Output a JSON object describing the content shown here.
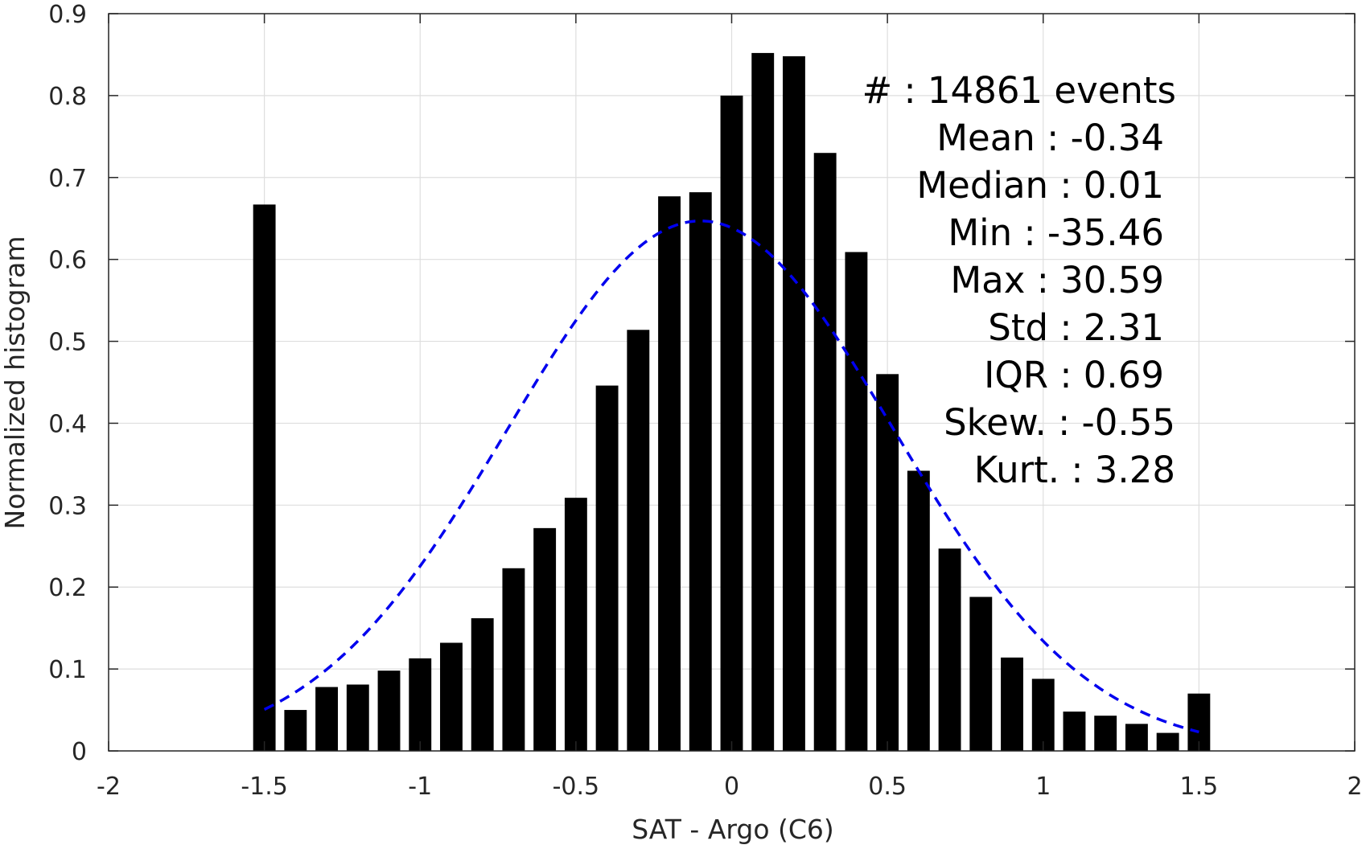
{
  "chart_data": {
    "type": "bar",
    "title": "",
    "xlabel": "SAT - Argo (C6)",
    "ylabel": "Normalized histogram",
    "xlim": [
      -2,
      2
    ],
    "ylim": [
      0,
      0.9
    ],
    "grid": true,
    "xticks": [
      "-2",
      "-1.5",
      "-1",
      "-0.5",
      "0",
      "0.5",
      "1",
      "1.5",
      "2"
    ],
    "xtick_values": [
      -2,
      -1.5,
      -1,
      -0.5,
      0,
      0.5,
      1,
      1.5,
      2
    ],
    "yticks": [
      "0",
      "0.1",
      "0.2",
      "0.3",
      "0.4",
      "0.5",
      "0.6",
      "0.7",
      "0.8",
      "0.9"
    ],
    "ytick_values": [
      0,
      0.1,
      0.2,
      0.3,
      0.4,
      0.5,
      0.6,
      0.7,
      0.8,
      0.9
    ],
    "bar_color": "#000000",
    "bars": {
      "x": [
        -1.5,
        -1.4,
        -1.3,
        -1.2,
        -1.1,
        -1.0,
        -0.9,
        -0.8,
        -0.7,
        -0.6,
        -0.5,
        -0.4,
        -0.3,
        -0.2,
        -0.1,
        0.0,
        0.1,
        0.2,
        0.3,
        0.4,
        0.5,
        0.6,
        0.7,
        0.8,
        0.9,
        1.0,
        1.1,
        1.2,
        1.3,
        1.4,
        1.5
      ],
      "values": [
        0.667,
        0.05,
        0.078,
        0.081,
        0.098,
        0.113,
        0.132,
        0.162,
        0.223,
        0.272,
        0.309,
        0.446,
        0.514,
        0.677,
        0.682,
        0.8,
        0.852,
        0.848,
        0.73,
        0.609,
        0.46,
        0.342,
        0.247,
        0.188,
        0.114,
        0.088,
        0.048,
        0.043,
        0.033,
        0.022,
        0.07
      ]
    },
    "fit_curve": {
      "style": "dashed",
      "color": "#0000ee",
      "mean": -0.1,
      "std": 0.62,
      "peak": 0.647,
      "x_range": [
        -1.5,
        1.5
      ]
    },
    "annotation_lines": [
      "#  : 14861 events",
      "Mean : -0.34",
      "Median : 0.01",
      "Min : -35.46",
      "Max : 30.59",
      "Std : 2.31",
      "IQR : 0.69",
      "Skew. : -0.55",
      "Kurt. : 3.28"
    ]
  }
}
